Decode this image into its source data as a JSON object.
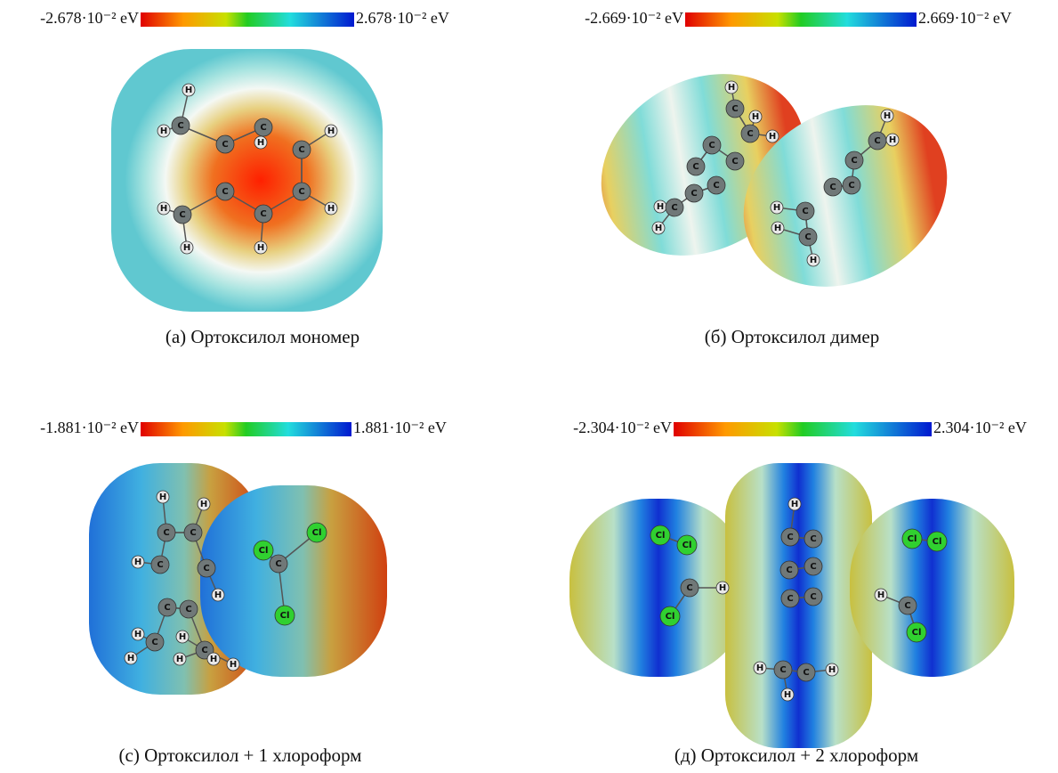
{
  "panels": [
    {
      "scale_min": "-2.678·10⁻² eV",
      "scale_max": "2.678·10⁻² eV",
      "atoms": [
        "H",
        "C",
        "H",
        "C",
        "C",
        "C",
        "C",
        "C",
        "C",
        "H",
        "H",
        "H",
        "H",
        "C",
        "H",
        "H"
      ],
      "caption": "(а) Ортоксилол мономер"
    },
    {
      "scale_min": "-2.669·10⁻² eV",
      "scale_max": "2.669·10⁻² eV",
      "atoms": [
        "H",
        "C",
        "H",
        "H",
        "C",
        "C",
        "C",
        "C",
        "H",
        "H",
        "C",
        "C",
        "C",
        "H",
        "H",
        "C",
        "C",
        "C",
        "C",
        "H",
        "H",
        "C",
        "H",
        "C"
      ],
      "caption": "(б) Ортоксилол димер"
    },
    {
      "scale_min": "-1.881·10⁻² eV",
      "scale_max": "1.881·10⁻² eV",
      "atoms": [
        "H",
        "H",
        "C",
        "C",
        "Cl",
        "Cl",
        "C",
        "H",
        "C",
        "C",
        "H",
        "C",
        "C",
        "Cl",
        "H",
        "C",
        "C",
        "H",
        "H",
        "H",
        "H",
        "H"
      ],
      "caption": "(с) Ортоксилол + 1 хлороформ"
    },
    {
      "scale_min": "-2.304·10⁻² eV",
      "scale_max": "2.304·10⁻² eV",
      "atoms": [
        "Cl",
        "Cl",
        "C",
        "H",
        "Cl",
        "Cl",
        "Cl",
        "H",
        "C",
        "Cl",
        "H",
        "C",
        "C",
        "C",
        "C",
        "C",
        "C",
        "H",
        "C",
        "C",
        "H",
        "H"
      ],
      "caption": "(д) Ортоксилол + 2 хлороформ"
    }
  ]
}
